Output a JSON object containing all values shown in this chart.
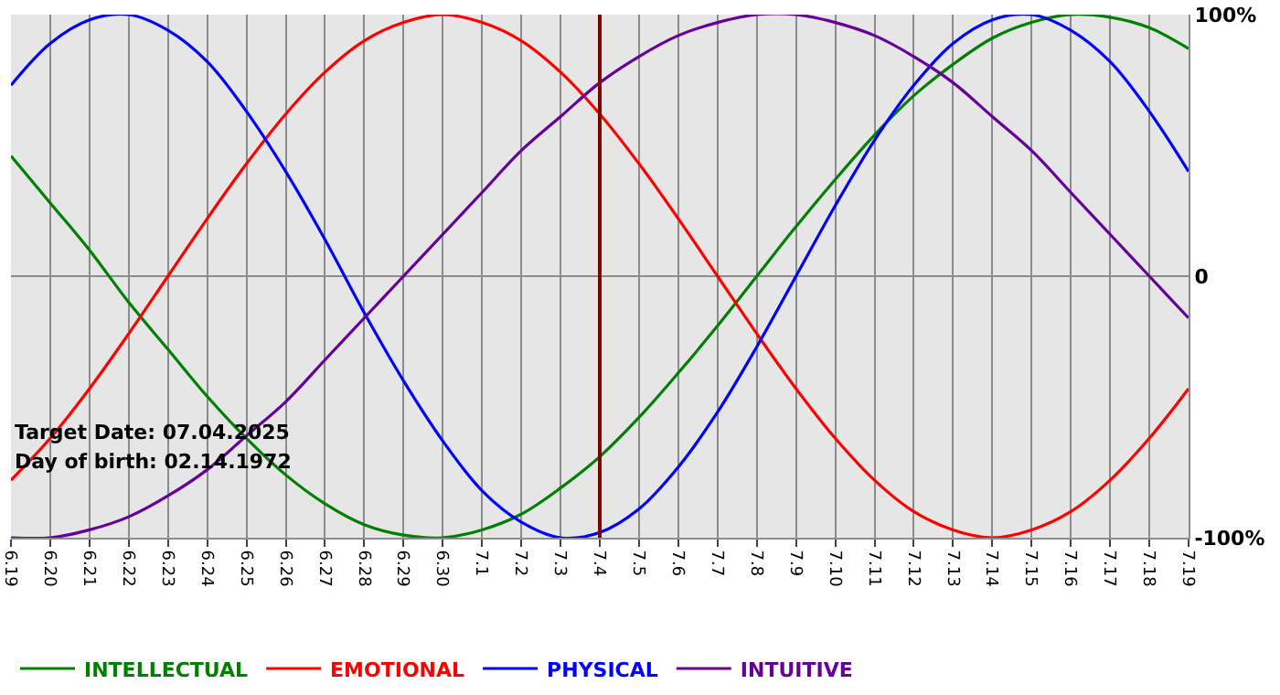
{
  "chart_data": {
    "type": "line",
    "categories": [
      "6.19",
      "6.20",
      "6.21",
      "6.22",
      "6.23",
      "6.24",
      "6.25",
      "6.26",
      "6.27",
      "6.28",
      "6.29",
      "6.30",
      "7.1",
      "7.2",
      "7.3",
      "7.4",
      "7.5",
      "7.6",
      "7.7",
      "7.8",
      "7.9",
      "7.10",
      "7.11",
      "7.12",
      "7.13",
      "7.14",
      "7.15",
      "7.16",
      "7.17",
      "7.18",
      "7.19"
    ],
    "series": [
      {
        "name": "INTELLECTUAL",
        "color": "#008000",
        "values": [
          46,
          28,
          10,
          -10,
          -28,
          -46,
          -62,
          -76,
          -87,
          -95,
          -99,
          -100,
          -97,
          -91,
          -81,
          -69,
          -54,
          -37,
          -19,
          0,
          19,
          37,
          54,
          69,
          81,
          91,
          97,
          100,
          99,
          95,
          87
        ]
      },
      {
        "name": "EMOTIONAL",
        "color": "#ff0000",
        "values": [
          -78,
          -62,
          -43,
          -22,
          0,
          22,
          43,
          62,
          78,
          90,
          97,
          100,
          97,
          90,
          78,
          62,
          43,
          22,
          0,
          -22,
          -43,
          -62,
          -78,
          -90,
          -97,
          -100,
          -97,
          -90,
          -78,
          -62,
          -43
        ]
      },
      {
        "name": "PHYSICAL",
        "color": "#0000ff",
        "values": [
          73,
          89,
          98,
          100,
          94,
          82,
          63,
          40,
          14,
          -14,
          -40,
          -63,
          -82,
          -94,
          -100,
          -98,
          -89,
          -73,
          -52,
          -27,
          0,
          27,
          52,
          73,
          89,
          98,
          100,
          94,
          82,
          63,
          40
        ]
      },
      {
        "name": "INTUITIVE",
        "color": "#660099",
        "values": [
          -100,
          -100,
          -97,
          -92,
          -84,
          -74,
          -61,
          -48,
          -32,
          -16,
          0,
          16,
          32,
          48,
          61,
          74,
          84,
          92,
          97,
          100,
          100,
          97,
          92,
          84,
          74,
          61,
          48,
          32,
          16,
          0,
          -16
        ]
      }
    ],
    "ylim": [
      -100,
      100
    ],
    "yticks": [
      {
        "value": 100,
        "label": "100%"
      },
      0,
      {
        "value": -100,
        "label": "-100%"
      }
    ],
    "ref_lines": [
      {
        "axis": "x",
        "value": "7.4",
        "color": "#800000"
      }
    ],
    "annotations": [
      "Target Date: 07.04.2025",
      "Day of birth: 02.14.1972"
    ],
    "grid": true,
    "legend": "bottom left",
    "marker": "none",
    "line_style": "solid"
  }
}
